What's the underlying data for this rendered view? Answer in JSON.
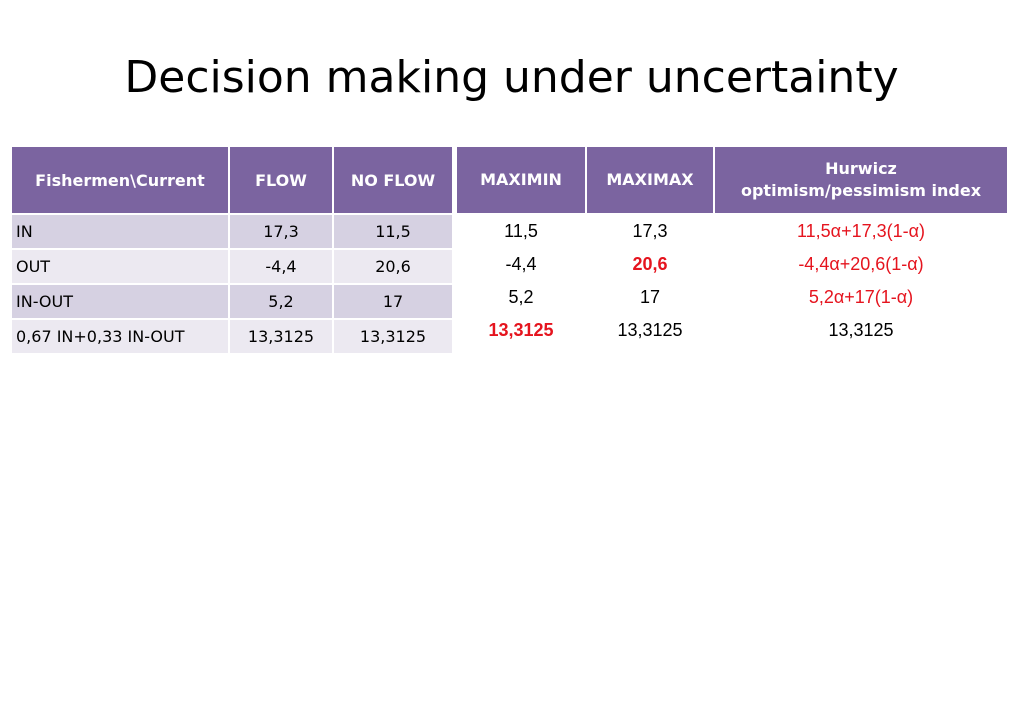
{
  "title": "Decision making under uncertainty",
  "payoff_table": {
    "headers": [
      "Fishermen\\Current",
      "FLOW",
      "NO FLOW"
    ],
    "rows": [
      {
        "label": "IN",
        "flow": "17,3",
        "no_flow": "11,5"
      },
      {
        "label": "OUT",
        "flow": "-4,4",
        "no_flow": "20,6"
      },
      {
        "label": "IN-OUT",
        "flow": "5,2",
        "no_flow": "17"
      },
      {
        "label": "0,67 IN+0,33 IN-OUT",
        "flow": "13,3125",
        "no_flow": "13,3125"
      }
    ]
  },
  "criteria_table": {
    "headers": {
      "maximin": "MAXIMIN",
      "maximax": "MAXIMAX",
      "hurwicz_line1": "Hurwicz",
      "hurwicz_line2": "optimism/pessimism index"
    },
    "rows": [
      {
        "maximin": "11,5",
        "maximax": "17,3",
        "hurwicz": "11,5α+17,3(1-α)"
      },
      {
        "maximin": "-4,4",
        "maximax": "20,6",
        "hurwicz": "-4,4α+20,6(1-α)"
      },
      {
        "maximin": "5,2",
        "maximax": "17",
        "hurwicz": "5,2α+17(1-α)"
      },
      {
        "maximin": "13,3125",
        "maximax": "13,3125",
        "hurwicz": "13,3125"
      }
    ],
    "highlight_color": "#e5141e"
  }
}
